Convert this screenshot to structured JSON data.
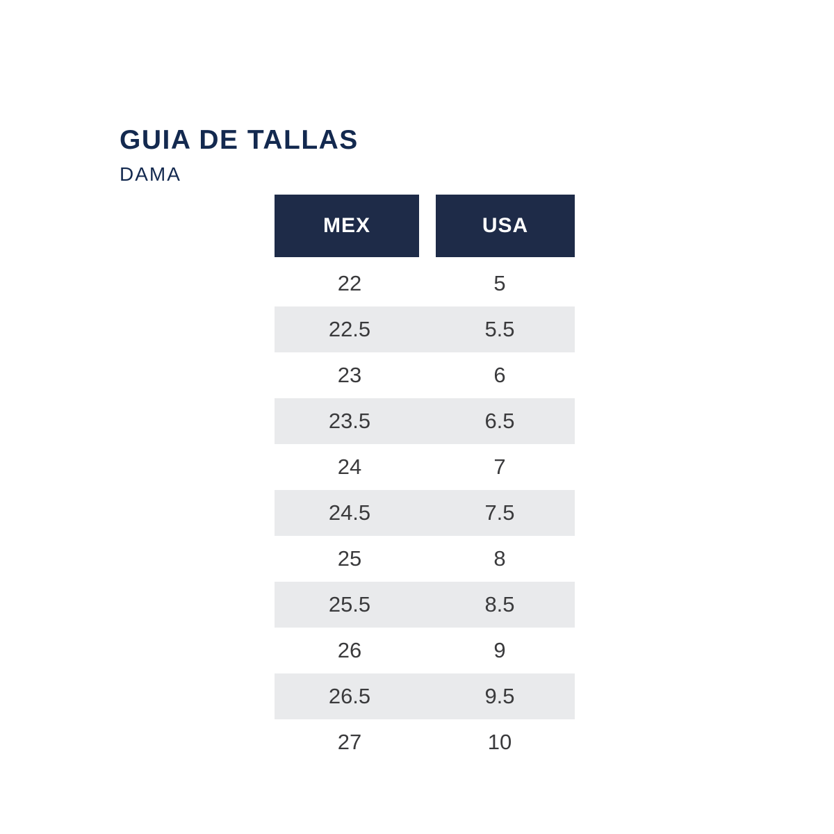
{
  "page": {
    "background_color": "#ffffff"
  },
  "header": {
    "title": "GUIA DE TALLAS",
    "subtitle": "DAMA",
    "title_color": "#13294f"
  },
  "table": {
    "column_headers": {
      "mex": "MEX",
      "usa": "USA"
    },
    "header_bg_color": "#1e2b48",
    "header_text_color": "#ffffff",
    "stripe_color": "#e9eaec",
    "value_text_color": "#3a3a3c",
    "rows": [
      {
        "mex": "22",
        "usa": "5"
      },
      {
        "mex": "22.5",
        "usa": "5.5"
      },
      {
        "mex": "23",
        "usa": "6"
      },
      {
        "mex": "23.5",
        "usa": "6.5"
      },
      {
        "mex": "24",
        "usa": "7"
      },
      {
        "mex": "24.5",
        "usa": "7.5"
      },
      {
        "mex": "25",
        "usa": "8"
      },
      {
        "mex": "25.5",
        "usa": "8.5"
      },
      {
        "mex": "26",
        "usa": "9"
      },
      {
        "mex": "26.5",
        "usa": "9.5"
      },
      {
        "mex": "27",
        "usa": "10"
      }
    ]
  },
  "chart_data": {
    "type": "table",
    "title": "GUIA DE TALLAS",
    "subtitle": "DAMA",
    "columns": [
      "MEX",
      "USA"
    ],
    "rows": [
      [
        "22",
        "5"
      ],
      [
        "22.5",
        "5.5"
      ],
      [
        "23",
        "6"
      ],
      [
        "23.5",
        "6.5"
      ],
      [
        "24",
        "7"
      ],
      [
        "24.5",
        "7.5"
      ],
      [
        "25",
        "8"
      ],
      [
        "25.5",
        "8.5"
      ],
      [
        "26",
        "9"
      ],
      [
        "26.5",
        "9.5"
      ],
      [
        "27",
        "10"
      ]
    ],
    "layout_hints": {
      "striped_rows": "even rows (2nd, 4th, ...) shaded light gray",
      "header_style": "two separate navy blocks with white bold text",
      "alignment": "all cells centered"
    }
  }
}
